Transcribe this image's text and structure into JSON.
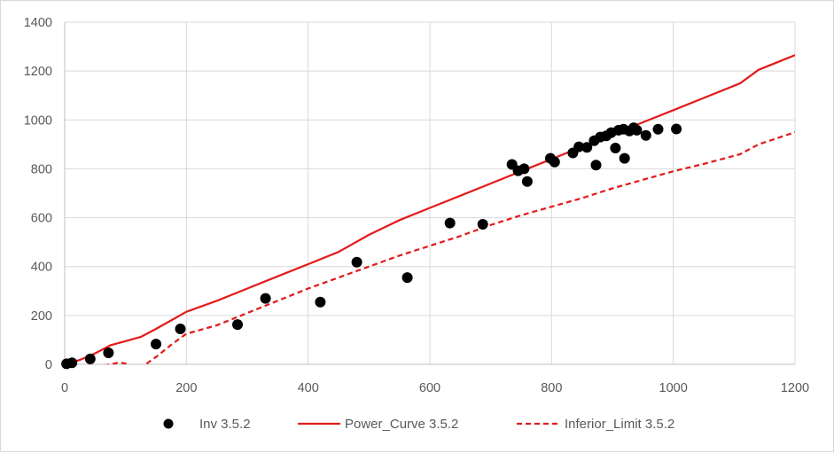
{
  "chart_data": {
    "type": "scatter",
    "title": "",
    "xlabel": "",
    "ylabel": "",
    "xlim": [
      0,
      1200
    ],
    "ylim": [
      0,
      1400
    ],
    "x_ticks": [
      0,
      200,
      400,
      600,
      800,
      1000,
      1200
    ],
    "y_ticks": [
      0,
      200,
      400,
      600,
      800,
      1000,
      1200,
      1400
    ],
    "x_tick_labels": [
      "0",
      "200",
      "400",
      "600",
      "800",
      "1000",
      "1200"
    ],
    "y_tick_labels": [
      "0",
      "200",
      "400",
      "600",
      "800",
      "1000",
      "1200",
      "1400"
    ],
    "grid": true,
    "legend_position": "bottom",
    "series": [
      {
        "name": "Inv 3.5.2",
        "kind": "scatter",
        "color": "#000000",
        "points": [
          [
            3,
            2
          ],
          [
            12,
            6
          ],
          [
            42,
            22
          ],
          [
            72,
            47
          ],
          [
            150,
            83
          ],
          [
            190,
            145
          ],
          [
            284,
            163
          ],
          [
            330,
            270
          ],
          [
            420,
            255
          ],
          [
            480,
            418
          ],
          [
            563,
            355
          ],
          [
            633,
            578
          ],
          [
            687,
            573
          ],
          [
            735,
            818
          ],
          [
            745,
            792
          ],
          [
            755,
            800
          ],
          [
            760,
            748
          ],
          [
            798,
            843
          ],
          [
            805,
            828
          ],
          [
            835,
            865
          ],
          [
            845,
            890
          ],
          [
            858,
            888
          ],
          [
            870,
            915
          ],
          [
            873,
            815
          ],
          [
            880,
            930
          ],
          [
            890,
            935
          ],
          [
            898,
            948
          ],
          [
            905,
            885
          ],
          [
            910,
            958
          ],
          [
            918,
            962
          ],
          [
            920,
            843
          ],
          [
            928,
            955
          ],
          [
            935,
            968
          ],
          [
            940,
            958
          ],
          [
            955,
            937
          ],
          [
            975,
            962
          ],
          [
            1005,
            963
          ]
        ]
      },
      {
        "name": "Power_Curve 3.5.2",
        "kind": "line",
        "style": "solid",
        "color": "#e31b1b",
        "points": [
          [
            0,
            0
          ],
          [
            25,
            18
          ],
          [
            50,
            45
          ],
          [
            75,
            78
          ],
          [
            100,
            95
          ],
          [
            125,
            112
          ],
          [
            150,
            145
          ],
          [
            175,
            180
          ],
          [
            200,
            215
          ],
          [
            250,
            260
          ],
          [
            300,
            310
          ],
          [
            350,
            360
          ],
          [
            400,
            410
          ],
          [
            450,
            460
          ],
          [
            500,
            530
          ],
          [
            550,
            590
          ],
          [
            600,
            640
          ],
          [
            650,
            690
          ],
          [
            700,
            740
          ],
          [
            750,
            790
          ],
          [
            800,
            840
          ],
          [
            850,
            890
          ],
          [
            900,
            940
          ],
          [
            950,
            990
          ],
          [
            1000,
            1040
          ],
          [
            1050,
            1090
          ],
          [
            1110,
            1150
          ],
          [
            1140,
            1205
          ],
          [
            1200,
            1265
          ]
        ]
      },
      {
        "name": "Inferior_Limit 3.5.2",
        "kind": "line",
        "style": "dashed",
        "color": "#e31b1b",
        "points": [
          [
            50,
            -10
          ],
          [
            75,
            0
          ],
          [
            90,
            8
          ],
          [
            100,
            3
          ],
          [
            110,
            -8
          ],
          [
            130,
            -5
          ],
          [
            150,
            30
          ],
          [
            175,
            80
          ],
          [
            200,
            125
          ],
          [
            250,
            160
          ],
          [
            300,
            210
          ],
          [
            350,
            260
          ],
          [
            400,
            310
          ],
          [
            450,
            355
          ],
          [
            500,
            400
          ],
          [
            550,
            445
          ],
          [
            600,
            485
          ],
          [
            650,
            525
          ],
          [
            700,
            570
          ],
          [
            750,
            610
          ],
          [
            800,
            645
          ],
          [
            850,
            680
          ],
          [
            900,
            720
          ],
          [
            950,
            755
          ],
          [
            1000,
            790
          ],
          [
            1050,
            820
          ],
          [
            1110,
            860
          ],
          [
            1140,
            900
          ],
          [
            1200,
            950
          ]
        ]
      }
    ]
  }
}
